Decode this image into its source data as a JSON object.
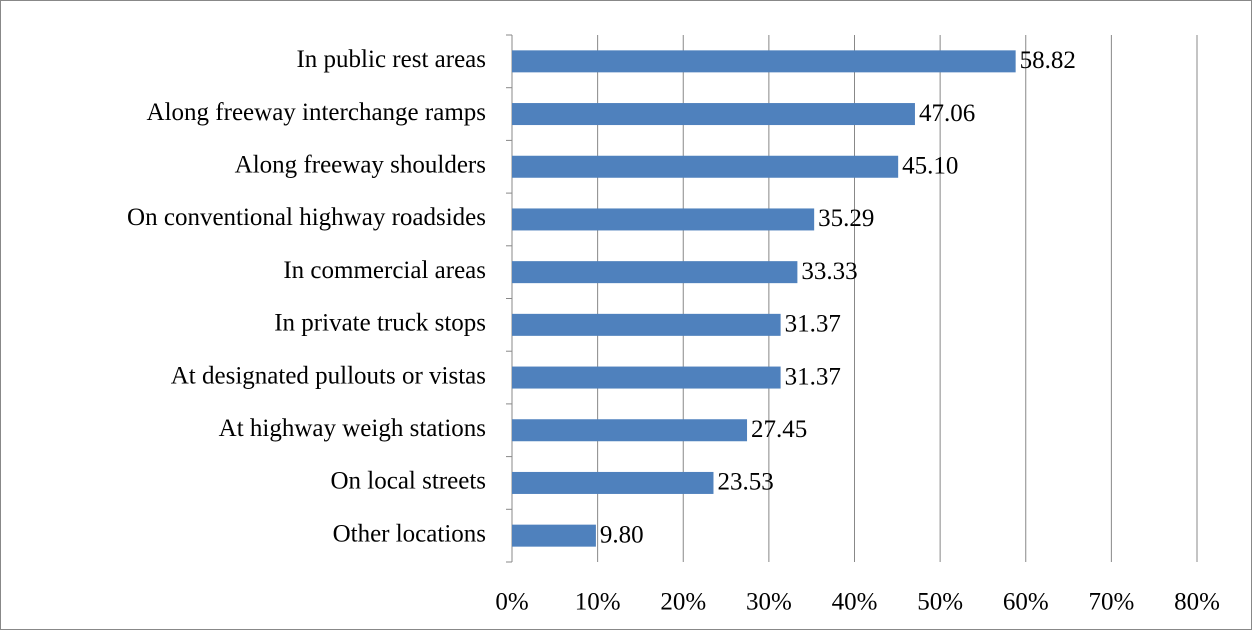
{
  "chart_data": {
    "type": "bar",
    "orientation": "horizontal",
    "categories": [
      "In public rest areas",
      "Along freeway interchange ramps",
      "Along freeway shoulders",
      "On conventional highway roadsides",
      "In commercial areas",
      "In private truck stops",
      "At designated pullouts or vistas",
      "At highway weigh stations",
      "On local streets",
      "Other locations"
    ],
    "values": [
      58.82,
      47.06,
      45.1,
      35.29,
      33.33,
      31.37,
      31.37,
      27.45,
      23.53,
      9.8
    ],
    "value_labels": [
      "58.82",
      "47.06",
      "45.10",
      "35.29",
      "33.33",
      "31.37",
      "31.37",
      "27.45",
      "23.53",
      "9.80"
    ],
    "color": "#4f81bd",
    "xlim": [
      0,
      80
    ],
    "xticks": [
      {
        "value": 0,
        "label": "0%"
      },
      {
        "value": 10,
        "label": "10%"
      },
      {
        "value": 20,
        "label": "20%"
      },
      {
        "value": 30,
        "label": "30%"
      },
      {
        "value": 40,
        "label": "40%"
      },
      {
        "value": 50,
        "label": "50%"
      },
      {
        "value": 60,
        "label": "60%"
      },
      {
        "value": 70,
        "label": "70%"
      },
      {
        "value": 80,
        "label": "80%"
      }
    ],
    "grid": true
  }
}
